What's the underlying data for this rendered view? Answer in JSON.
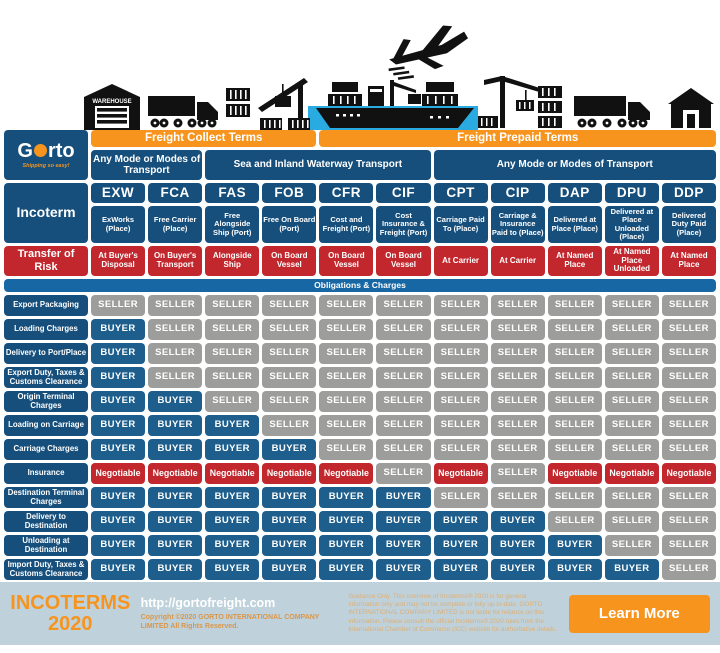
{
  "logo": {
    "brand_prefix": "G",
    "brand_suffix": "rto",
    "tagline": "Shipping so easy!"
  },
  "illustration": {
    "warehouse_label": "WAREHOUSE"
  },
  "chart_data": {
    "type": "table",
    "title": "INCOTERMS 2020 responsibility matrix",
    "freight_groups": [
      {
        "label": "Freight Collect Terms",
        "span_columns": [
          "EXW",
          "FCA",
          "FAS",
          "FOB"
        ]
      },
      {
        "label": "Freight Prepaid Terms",
        "span_columns": [
          "CFR",
          "CIF",
          "CPT",
          "CIP",
          "DAP",
          "DPU",
          "DDP"
        ]
      }
    ],
    "transport_modes": [
      {
        "label": "Any Mode or Modes of Transport",
        "span_columns": [
          "EXW",
          "FCA"
        ]
      },
      {
        "label": "Sea and Inland Waterway Transport",
        "span_columns": [
          "FAS",
          "FOB",
          "CFR",
          "CIF"
        ]
      },
      {
        "label": "Any Mode or Modes of Transport",
        "span_columns": [
          "CPT",
          "CIP",
          "DAP",
          "DPU",
          "DDP"
        ]
      }
    ],
    "incoterm_label": "Incoterm",
    "transfer_of_risk_label": "Transfer of Risk",
    "obligations_label": "Obligations & Charges",
    "columns": [
      {
        "code": "EXW",
        "name": "ExWorks (Place)",
        "risk": "At Buyer's Disposal"
      },
      {
        "code": "FCA",
        "name": "Free Carrier (Place)",
        "risk": "On Buyer's Transport"
      },
      {
        "code": "FAS",
        "name": "Free Alongside Ship (Port)",
        "risk": "Alongside Ship"
      },
      {
        "code": "FOB",
        "name": "Free On Board (Port)",
        "risk": "On Board Vessel"
      },
      {
        "code": "CFR",
        "name": "Cost and Freight (Port)",
        "risk": "On Board Vessel"
      },
      {
        "code": "CIF",
        "name": "Cost Insurance & Freight (Port)",
        "risk": "On Board Vessel"
      },
      {
        "code": "CPT",
        "name": "Carriage Paid To (Place)",
        "risk": "At Carrier"
      },
      {
        "code": "CIP",
        "name": "Carriage & Insurance Paid to (Place)",
        "risk": "At Carrier"
      },
      {
        "code": "DAP",
        "name": "Delivered at Place (Place)",
        "risk": "At Named Place"
      },
      {
        "code": "DPU",
        "name": "Delivered at Place Unloaded (Place)",
        "risk": "At Named Place Unloaded"
      },
      {
        "code": "DDP",
        "name": "Delivered Duty Paid (Place)",
        "risk": "At Named Place"
      }
    ],
    "rows": [
      {
        "label": "Export Packaging",
        "values": [
          "SELLER",
          "SELLER",
          "SELLER",
          "SELLER",
          "SELLER",
          "SELLER",
          "SELLER",
          "SELLER",
          "SELLER",
          "SELLER",
          "SELLER"
        ]
      },
      {
        "label": "Loading Charges",
        "values": [
          "BUYER",
          "SELLER",
          "SELLER",
          "SELLER",
          "SELLER",
          "SELLER",
          "SELLER",
          "SELLER",
          "SELLER",
          "SELLER",
          "SELLER"
        ]
      },
      {
        "label": "Delivery to Port/Place",
        "values": [
          "BUYER",
          "SELLER",
          "SELLER",
          "SELLER",
          "SELLER",
          "SELLER",
          "SELLER",
          "SELLER",
          "SELLER",
          "SELLER",
          "SELLER"
        ]
      },
      {
        "label": "Export Duty, Taxes & Customs Clearance",
        "values": [
          "BUYER",
          "SELLER",
          "SELLER",
          "SELLER",
          "SELLER",
          "SELLER",
          "SELLER",
          "SELLER",
          "SELLER",
          "SELLER",
          "SELLER"
        ]
      },
      {
        "label": "Origin Terminal Charges",
        "values": [
          "BUYER",
          "BUYER",
          "SELLER",
          "SELLER",
          "SELLER",
          "SELLER",
          "SELLER",
          "SELLER",
          "SELLER",
          "SELLER",
          "SELLER"
        ]
      },
      {
        "label": "Loading on Carriage",
        "values": [
          "BUYER",
          "BUYER",
          "BUYER",
          "SELLER",
          "SELLER",
          "SELLER",
          "SELLER",
          "SELLER",
          "SELLER",
          "SELLER",
          "SELLER"
        ]
      },
      {
        "label": "Carriage Charges",
        "values": [
          "BUYER",
          "BUYER",
          "BUYER",
          "BUYER",
          "SELLER",
          "SELLER",
          "SELLER",
          "SELLER",
          "SELLER",
          "SELLER",
          "SELLER"
        ]
      },
      {
        "label": "Insurance",
        "values": [
          "Negotiable",
          "Negotiable",
          "Negotiable",
          "Negotiable",
          "Negotiable",
          "SELLER",
          "Negotiable",
          "SELLER",
          "Negotiable",
          "Negotiable",
          "Negotiable"
        ]
      },
      {
        "label": "Destination Terminal Charges",
        "values": [
          "BUYER",
          "BUYER",
          "BUYER",
          "BUYER",
          "BUYER",
          "BUYER",
          "SELLER",
          "SELLER",
          "SELLER",
          "SELLER",
          "SELLER"
        ]
      },
      {
        "label": "Delivery to Destination",
        "values": [
          "BUYER",
          "BUYER",
          "BUYER",
          "BUYER",
          "BUYER",
          "BUYER",
          "BUYER",
          "BUYER",
          "SELLER",
          "SELLER",
          "SELLER"
        ]
      },
      {
        "label": "Unloading at Destination",
        "values": [
          "BUYER",
          "BUYER",
          "BUYER",
          "BUYER",
          "BUYER",
          "BUYER",
          "BUYER",
          "BUYER",
          "BUYER",
          "SELLER",
          "SELLER"
        ]
      },
      {
        "label": "Import Duty, Taxes & Customs Clearance",
        "values": [
          "BUYER",
          "BUYER",
          "BUYER",
          "BUYER",
          "BUYER",
          "BUYER",
          "BUYER",
          "BUYER",
          "BUYER",
          "BUYER",
          "SELLER"
        ]
      }
    ],
    "legend_colors": {
      "BUYER": "#1D5E8D",
      "SELLER": "#9D9D9C",
      "Negotiable": "#C1272D",
      "accent_orange": "#F7941D",
      "risk_red": "#C1272D",
      "water_blue": "#29ABE2"
    }
  },
  "footer": {
    "title_line1": "INCOTERMS",
    "title_line2": "2020",
    "url": "http://gortofreight.com",
    "copyright": "Copyright ©2020 GORTO INTERNATIONAL COMPANY LIMITED All Rights Reserved.",
    "disclaimer": "Guidance Only. This overview of Incoterms® 2020 is for general information only and may not be complete or fully up-to-date. GORTO INTERNATIONAL COMPANY LIMITED is not liable for reliance on this information. Please consult the official Incoterms® 2020 rules from the International Chamber of Commerce (ICC) website for authoritative details.",
    "learn_more_label": "Learn More"
  }
}
